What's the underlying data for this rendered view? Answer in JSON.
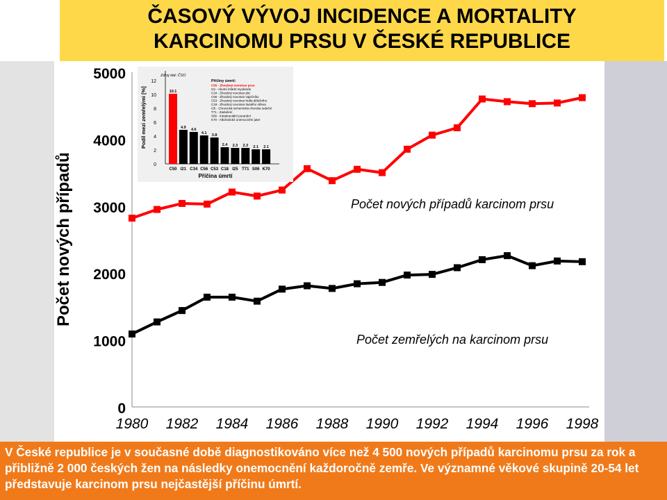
{
  "title": {
    "line1": "ČASOVÝ VÝVOJ INCIDENCE A MORTALITY",
    "line2": "KARCINOMU PRSU V ČESKÉ REPUBLICE"
  },
  "footer_text": "V České republice je v současné době diagnostikováno více než 4 500 nových případů karcinomu prsu za rok a přibližně 2 000 českých žen na následky onemocnění každoročně zemře. Ve významné věkové skupině 20-54 let představuje karcinom prsu nejčastější příčinu úmrtí.",
  "colors": {
    "title_bg": "#ffd84a",
    "footer_bg": "#f07a1a",
    "incidence": "#ff0000",
    "mortality": "#000000"
  },
  "chart_data": [
    {
      "type": "line",
      "ylabel": "Počet nových případů",
      "xlabel": "",
      "ylim": [
        0,
        5000
      ],
      "xlim": [
        1980,
        1998
      ],
      "yticks": [
        "0",
        "1000",
        "2000",
        "3000",
        "4000",
        "5000"
      ],
      "xticks": [
        "1980",
        "1982",
        "1984",
        "1986",
        "1988",
        "1990",
        "1992",
        "1994",
        "1996",
        "1998"
      ],
      "series": [
        {
          "name": "Počet nových případů karcinom prsu",
          "color": "#ff0000",
          "x": [
            1980,
            1981,
            1982,
            1983,
            1984,
            1985,
            1986,
            1987,
            1988,
            1989,
            1990,
            1991,
            1992,
            1993,
            1994,
            1995,
            1996,
            1997,
            1998
          ],
          "y": [
            2820,
            2950,
            3040,
            3030,
            3210,
            3150,
            3240,
            3560,
            3380,
            3550,
            3500,
            3850,
            4060,
            4170,
            4600,
            4560,
            4530,
            4540,
            4620
          ]
        },
        {
          "name": "Počet zemřelých na karcinom prsu",
          "color": "#000000",
          "x": [
            1980,
            1981,
            1982,
            1983,
            1984,
            1985,
            1986,
            1987,
            1988,
            1989,
            1990,
            1991,
            1992,
            1993,
            1994,
            1995,
            1996,
            1997,
            1998
          ],
          "y": [
            1090,
            1270,
            1440,
            1640,
            1640,
            1580,
            1760,
            1810,
            1770,
            1840,
            1860,
            1970,
            1980,
            2080,
            2200,
            2260,
            2110,
            2180,
            2170
          ]
        }
      ],
      "grid": false,
      "legend": "inline labels"
    },
    {
      "type": "bar",
      "note_title": "Zdroj dat: ČSÚ",
      "ylabel": "Podíl mezi zemřelými [%]",
      "xlabel": "Příčina úmrtí",
      "ylim": [
        0,
        12
      ],
      "yticks": [
        "0",
        "2",
        "4",
        "6",
        "8",
        "10",
        "12"
      ],
      "categories": [
        "C50",
        "I21",
        "C34",
        "C56",
        "C53",
        "C18",
        "I25",
        "T71",
        "S06",
        "K70"
      ],
      "values": [
        10.1,
        4.9,
        4.6,
        4.1,
        3.8,
        2.4,
        2.3,
        2.3,
        2.1,
        2.1
      ],
      "value_labels": [
        "10.1",
        "4.9",
        "4.6",
        "4.1",
        "3.8",
        "2.4",
        "2.3",
        "2.3",
        "2.1",
        "2.1"
      ],
      "highlight_color": "#ff0000",
      "bar_color": "#000000",
      "legend_title": "Příčiny úmrtí:",
      "legend_items": [
        "C50 - Zhoubný novotvar prsu",
        "I21 - Akutní infarkt myokardu",
        "C34 - Zhoubný novotvar plic",
        "C56 - Zhoubný novotvar vaječníku",
        "C53 - Zhoubný novotvar hrdla děložního",
        "C18 - Zhoubný novotvar tlustého střeva",
        "I25 - Chronická ischemická choroba srdeční",
        "T71 - Zadušení",
        "S06 - Intrakraniální poranění",
        "K70 - Alkoholické onemocnění jater"
      ]
    }
  ]
}
